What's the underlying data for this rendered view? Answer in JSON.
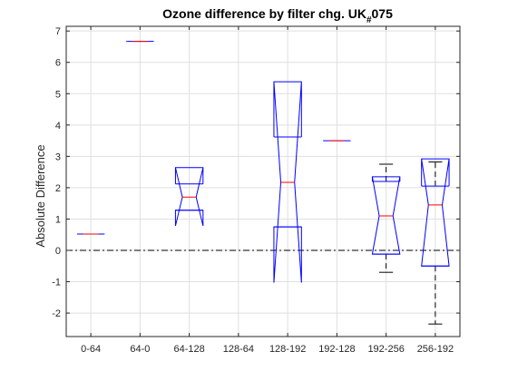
{
  "chart_data": {
    "type": "box",
    "title": "Ozone difference by filter chg. UK",
    "title_subscript": "#",
    "title_suffix": "075",
    "xlabel": "",
    "ylabel": "Absolute Difference",
    "ylim": [
      -2.75,
      7.15
    ],
    "yticks": [
      -2,
      -1,
      0,
      1,
      2,
      3,
      4,
      5,
      6,
      7
    ],
    "categories": [
      "0-64",
      "64-0",
      "64-128",
      "128-64",
      "128-192",
      "192-128",
      "192-256",
      "256-192"
    ],
    "reference_line": 0,
    "grid": true,
    "notched": true,
    "colors": {
      "box": "#0000ff",
      "median": "#ff0000",
      "whisker": "#000000",
      "reference": "#000000"
    },
    "boxes": [
      {
        "category": "0-64",
        "q1": 0.52,
        "median": 0.52,
        "q3": 0.52,
        "whisker_low": 0.52,
        "whisker_high": 0.52,
        "notch_low": 0.52,
        "notch_high": 0.52
      },
      {
        "category": "64-0",
        "q1": 6.67,
        "median": 6.67,
        "q3": 6.67,
        "whisker_low": 6.67,
        "whisker_high": 6.67,
        "notch_low": 6.67,
        "notch_high": 6.67
      },
      {
        "category": "64-128",
        "q1": 1.28,
        "median": 1.7,
        "q3": 2.12,
        "whisker_low": 1.28,
        "whisker_high": 2.12,
        "notch_low": 0.78,
        "notch_high": 2.64
      },
      {
        "category": "128-64",
        "q1": null,
        "median": null,
        "q3": null,
        "whisker_low": null,
        "whisker_high": null,
        "notch_low": null,
        "notch_high": null
      },
      {
        "category": "128-192",
        "q1": 0.75,
        "median": 2.17,
        "q3": 3.62,
        "whisker_low": 0.75,
        "whisker_high": 3.62,
        "notch_low": -1.03,
        "notch_high": 5.38
      },
      {
        "category": "192-128",
        "q1": 3.5,
        "median": 3.5,
        "q3": 3.5,
        "whisker_low": 3.5,
        "whisker_high": 3.5,
        "notch_low": 3.5,
        "notch_high": 3.5
      },
      {
        "category": "192-256",
        "q1": -0.12,
        "median": 1.1,
        "q3": 2.2,
        "whisker_low": -0.7,
        "whisker_high": 2.75,
        "notch_low": -0.12,
        "notch_high": 2.35
      },
      {
        "category": "256-192",
        "q1": -0.5,
        "median": 1.45,
        "q3": 2.05,
        "whisker_low": -2.35,
        "whisker_high": 2.82,
        "notch_low": -0.5,
        "notch_high": 2.92
      }
    ]
  }
}
